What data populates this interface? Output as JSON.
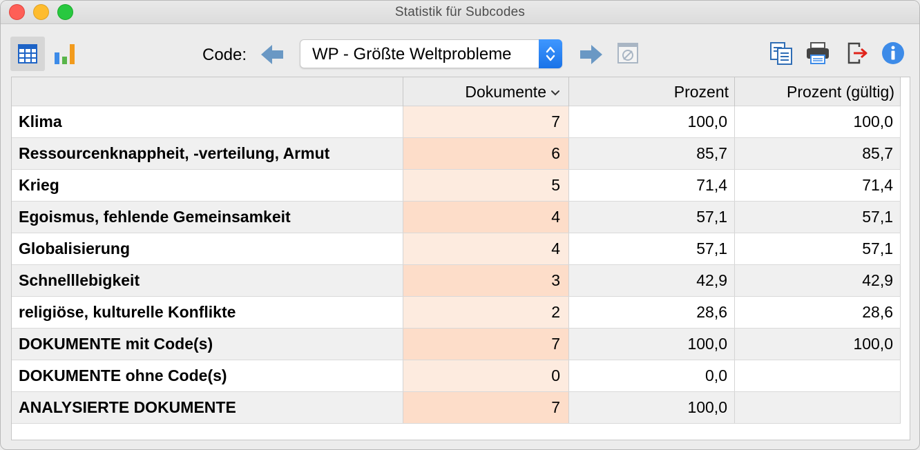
{
  "window": {
    "title": "Statistik für Subcodes"
  },
  "toolbar": {
    "code_label": "Code:",
    "selected_code": "WP - Größte Weltprobleme",
    "icons": [
      "table-view-icon",
      "bar-chart-icon",
      "arrow-left-icon",
      "arrow-right-icon",
      "filter-empty-icon",
      "copy-icon",
      "print-icon",
      "export-icon",
      "info-icon"
    ]
  },
  "table": {
    "headers": {
      "code": "",
      "documents": "Dokumente",
      "percent": "Prozent",
      "percent_valid": "Prozent (gültig)"
    },
    "rows": [
      {
        "name": "Klima",
        "documents": "7",
        "percent": "100,0",
        "percent_valid": "100,0"
      },
      {
        "name": "Ressourcenknappheit, -verteilung, Armut",
        "documents": "6",
        "percent": "85,7",
        "percent_valid": "85,7"
      },
      {
        "name": "Krieg",
        "documents": "5",
        "percent": "71,4",
        "percent_valid": "71,4"
      },
      {
        "name": "Egoismus, fehlende Gemeinsamkeit",
        "documents": "4",
        "percent": "57,1",
        "percent_valid": "57,1"
      },
      {
        "name": "Globalisierung",
        "documents": "4",
        "percent": "57,1",
        "percent_valid": "57,1"
      },
      {
        "name": "Schnelllebigkeit",
        "documents": "3",
        "percent": "42,9",
        "percent_valid": "42,9"
      },
      {
        "name": "religiöse, kulturelle Konflikte",
        "documents": "2",
        "percent": "28,6",
        "percent_valid": "28,6"
      },
      {
        "name": "DOKUMENTE mit Code(s)",
        "documents": "7",
        "percent": "100,0",
        "percent_valid": "100,0"
      },
      {
        "name": "DOKUMENTE ohne Code(s)",
        "documents": "0",
        "percent": "0,0",
        "percent_valid": ""
      },
      {
        "name": "ANALYSIERTE DOKUMENTE",
        "documents": "7",
        "percent": "100,0",
        "percent_valid": ""
      }
    ]
  },
  "colors": {
    "accent_blue": "#1a73e8",
    "documents_column_light": "#fdebdf",
    "documents_column_dark": "#fdddc9"
  }
}
